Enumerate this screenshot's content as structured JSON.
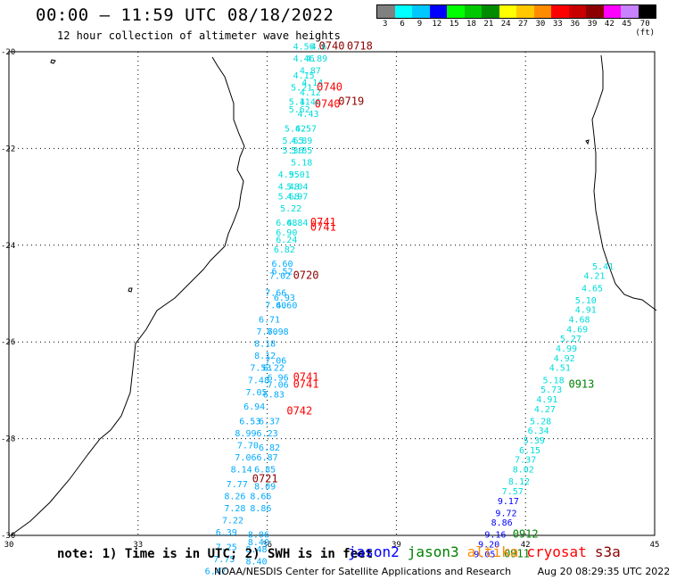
{
  "header": {
    "title": "00:00 – 11:59 UTC 08/18/2022",
    "subtitle": "12 hour collection of altimeter wave heights"
  },
  "legend": {
    "colors": [
      "#808080",
      "#00ffff",
      "#00c8ff",
      "#0000ff",
      "#00ff00",
      "#00c800",
      "#008c00",
      "#ffff00",
      "#ffc800",
      "#ff8c00",
      "#ff0000",
      "#c80000",
      "#8c0000",
      "#ff00ff",
      "#c882ff",
      "#000000"
    ],
    "labels": [
      "",
      "3",
      "6",
      "9",
      "12",
      "15",
      "18",
      "21",
      "24",
      "27",
      "30",
      "33",
      "36",
      "39",
      "42",
      "45",
      "70 (ft)"
    ]
  },
  "map": {
    "x_ticks": [
      "30",
      "33",
      "36",
      "39",
      "42",
      "45"
    ],
    "y_ticks": [
      "-20",
      "-22",
      "-24",
      "-26",
      "-28",
      "-30"
    ],
    "colors": {
      "cyan": "#00dcdc",
      "lightblue": "#00aaff",
      "blue": "#0000ff",
      "red": "#ff0000",
      "darkred": "#8b0000",
      "green": "#008000"
    },
    "wave_heights": [
      {
        "lon": 36.85,
        "lat": -19.95,
        "text": "4.56",
        "color": "cyan"
      },
      {
        "lon": 37.2,
        "lat": -19.95,
        "text": "4.6",
        "color": "cyan"
      },
      {
        "lon": 36.85,
        "lat": -20.2,
        "text": "4.46",
        "color": "cyan"
      },
      {
        "lon": 37.15,
        "lat": -20.2,
        "text": "4.89",
        "color": "cyan"
      },
      {
        "lon": 37.0,
        "lat": -20.45,
        "text": "4.87",
        "color": "cyan"
      },
      {
        "lon": 36.85,
        "lat": -20.55,
        "text": "4.15",
        "color": "cyan"
      },
      {
        "lon": 37.05,
        "lat": -20.7,
        "text": "4.14",
        "color": "cyan"
      },
      {
        "lon": 36.8,
        "lat": -20.8,
        "text": "5.21",
        "color": "cyan"
      },
      {
        "lon": 37.0,
        "lat": -20.9,
        "text": "4.12",
        "color": "cyan"
      },
      {
        "lon": 36.75,
        "lat": -21.1,
        "text": "5.11",
        "color": "cyan"
      },
      {
        "lon": 37.0,
        "lat": -21.1,
        "text": "4.46",
        "color": "cyan"
      },
      {
        "lon": 36.75,
        "lat": -21.25,
        "text": "5.62",
        "color": "cyan"
      },
      {
        "lon": 36.95,
        "lat": -21.35,
        "text": "4.43",
        "color": "cyan"
      },
      {
        "lon": 36.65,
        "lat": -21.65,
        "text": "5.62",
        "color": "cyan"
      },
      {
        "lon": 36.9,
        "lat": -21.65,
        "text": "4.57",
        "color": "cyan"
      },
      {
        "lon": 36.6,
        "lat": -21.9,
        "text": "5.65",
        "color": "cyan"
      },
      {
        "lon": 36.8,
        "lat": -21.9,
        "text": "4.89",
        "color": "cyan"
      },
      {
        "lon": 36.6,
        "lat": -22.1,
        "text": "5.36",
        "color": "cyan"
      },
      {
        "lon": 36.8,
        "lat": -22.1,
        "text": "5.85",
        "color": "cyan"
      },
      {
        "lon": 36.8,
        "lat": -22.35,
        "text": "5.18",
        "color": "cyan"
      },
      {
        "lon": 36.5,
        "lat": -22.6,
        "text": "4.95",
        "color": "cyan"
      },
      {
        "lon": 36.75,
        "lat": -22.6,
        "text": "5.01",
        "color": "cyan"
      },
      {
        "lon": 36.5,
        "lat": -22.85,
        "text": "4.48",
        "color": "cyan"
      },
      {
        "lon": 36.7,
        "lat": -22.85,
        "text": "5.04",
        "color": "cyan"
      },
      {
        "lon": 36.5,
        "lat": -23.05,
        "text": "5.68",
        "color": "cyan"
      },
      {
        "lon": 36.7,
        "lat": -23.05,
        "text": "4.97",
        "color": "cyan"
      },
      {
        "lon": 36.55,
        "lat": -23.3,
        "text": "5.22",
        "color": "cyan"
      },
      {
        "lon": 36.45,
        "lat": -23.6,
        "text": "6.48",
        "color": "cyan"
      },
      {
        "lon": 36.7,
        "lat": -23.6,
        "text": "6.84",
        "color": "cyan"
      },
      {
        "lon": 36.45,
        "lat": -23.8,
        "text": "6.90",
        "color": "cyan"
      },
      {
        "lon": 36.45,
        "lat": -23.95,
        "text": "6.24",
        "color": "cyan"
      },
      {
        "lon": 36.4,
        "lat": -24.15,
        "text": "6.82",
        "color": "cyan"
      },
      {
        "lon": 36.35,
        "lat": -24.45,
        "text": "6.60",
        "color": "lightblue"
      },
      {
        "lon": 36.35,
        "lat": -24.6,
        "text": "6.52",
        "color": "lightblue"
      },
      {
        "lon": 36.3,
        "lat": -24.7,
        "text": "7.02",
        "color": "lightblue"
      },
      {
        "lon": 36.2,
        "lat": -25.05,
        "text": "7.66",
        "color": "lightblue"
      },
      {
        "lon": 36.4,
        "lat": -25.15,
        "text": "6.93",
        "color": "lightblue"
      },
      {
        "lon": 36.2,
        "lat": -25.3,
        "text": "7.40",
        "color": "lightblue"
      },
      {
        "lon": 36.45,
        "lat": -25.3,
        "text": "6.60",
        "color": "lightblue"
      },
      {
        "lon": 36.05,
        "lat": -25.6,
        "text": "6.71",
        "color": "lightblue"
      },
      {
        "lon": 36.0,
        "lat": -25.85,
        "text": "7.70",
        "color": "lightblue"
      },
      {
        "lon": 36.25,
        "lat": -25.85,
        "text": "6.98",
        "color": "lightblue"
      },
      {
        "lon": 35.95,
        "lat": -26.1,
        "text": "8.18",
        "color": "lightblue"
      },
      {
        "lon": 35.95,
        "lat": -26.35,
        "text": "8.12",
        "color": "lightblue"
      },
      {
        "lon": 36.2,
        "lat": -26.45,
        "text": "7.06",
        "color": "lightblue"
      },
      {
        "lon": 35.85,
        "lat": -26.6,
        "text": "7.53",
        "color": "lightblue"
      },
      {
        "lon": 36.15,
        "lat": -26.6,
        "text": "6.22",
        "color": "lightblue"
      },
      {
        "lon": 36.25,
        "lat": -26.8,
        "text": "6.96",
        "color": "lightblue"
      },
      {
        "lon": 35.8,
        "lat": -26.85,
        "text": "7.48",
        "color": "lightblue"
      },
      {
        "lon": 36.25,
        "lat": -26.95,
        "text": "7.06",
        "color": "lightblue"
      },
      {
        "lon": 35.75,
        "lat": -27.1,
        "text": "7.05",
        "color": "lightblue"
      },
      {
        "lon": 36.15,
        "lat": -27.15,
        "text": "6.83",
        "color": "lightblue"
      },
      {
        "lon": 35.7,
        "lat": -27.4,
        "text": "6.94",
        "color": "lightblue"
      },
      {
        "lon": 35.6,
        "lat": -27.7,
        "text": "6.53",
        "color": "lightblue"
      },
      {
        "lon": 36.05,
        "lat": -27.7,
        "text": "6.37",
        "color": "lightblue"
      },
      {
        "lon": 35.5,
        "lat": -27.95,
        "text": "8.99",
        "color": "lightblue"
      },
      {
        "lon": 36.0,
        "lat": -27.95,
        "text": "6.23",
        "color": "lightblue"
      },
      {
        "lon": 35.55,
        "lat": -28.2,
        "text": "7.70",
        "color": "lightblue"
      },
      {
        "lon": 36.05,
        "lat": -28.25,
        "text": "6.82",
        "color": "lightblue"
      },
      {
        "lon": 35.5,
        "lat": -28.45,
        "text": "7.06",
        "color": "lightblue"
      },
      {
        "lon": 36.0,
        "lat": -28.45,
        "text": "6.87",
        "color": "lightblue"
      },
      {
        "lon": 35.4,
        "lat": -28.7,
        "text": "8.14",
        "color": "lightblue"
      },
      {
        "lon": 35.95,
        "lat": -28.7,
        "text": "6.85",
        "color": "lightblue"
      },
      {
        "lon": 35.3,
        "lat": -29.0,
        "text": "7.77",
        "color": "lightblue"
      },
      {
        "lon": 35.95,
        "lat": -29.05,
        "text": "8.09",
        "color": "lightblue"
      },
      {
        "lon": 35.25,
        "lat": -29.25,
        "text": "8.26",
        "color": "lightblue"
      },
      {
        "lon": 35.85,
        "lat": -29.25,
        "text": "8.66",
        "color": "lightblue"
      },
      {
        "lon": 35.25,
        "lat": -29.5,
        "text": "7.28",
        "color": "lightblue"
      },
      {
        "lon": 35.85,
        "lat": -29.5,
        "text": "8.86",
        "color": "lightblue"
      },
      {
        "lon": 35.2,
        "lat": -29.75,
        "text": "7.22",
        "color": "lightblue"
      },
      {
        "lon": 35.05,
        "lat": -30.0,
        "text": "6.39",
        "color": "lightblue"
      },
      {
        "lon": 35.8,
        "lat": -30.05,
        "text": "8.06",
        "color": "lightblue"
      },
      {
        "lon": 35.8,
        "lat": -30.2,
        "text": "8.40",
        "color": "lightblue"
      },
      {
        "lon": 35.05,
        "lat": -30.3,
        "text": "7.25",
        "color": "lightblue"
      },
      {
        "lon": 35.75,
        "lat": -30.35,
        "text": "8.48",
        "color": "lightblue"
      },
      {
        "lon": 35.0,
        "lat": -30.55,
        "text": "7.75",
        "color": "lightblue"
      },
      {
        "lon": 35.75,
        "lat": -30.6,
        "text": "8.40",
        "color": "lightblue"
      },
      {
        "lon": 34.8,
        "lat": -30.8,
        "text": "6.47",
        "color": "lightblue"
      },
      {
        "lon": 43.8,
        "lat": -24.5,
        "text": "5.41",
        "color": "cyan"
      },
      {
        "lon": 43.6,
        "lat": -24.7,
        "text": "4.21",
        "color": "cyan"
      },
      {
        "lon": 43.55,
        "lat": -24.95,
        "text": "4.65",
        "color": "cyan"
      },
      {
        "lon": 43.4,
        "lat": -25.2,
        "text": "5.10",
        "color": "cyan"
      },
      {
        "lon": 43.4,
        "lat": -25.4,
        "text": "4.91",
        "color": "cyan"
      },
      {
        "lon": 43.25,
        "lat": -25.6,
        "text": "4.68",
        "color": "cyan"
      },
      {
        "lon": 43.2,
        "lat": -25.8,
        "text": "4.69",
        "color": "cyan"
      },
      {
        "lon": 43.05,
        "lat": -26.0,
        "text": "5.27",
        "color": "cyan"
      },
      {
        "lon": 42.95,
        "lat": -26.2,
        "text": "4.99",
        "color": "cyan"
      },
      {
        "lon": 42.9,
        "lat": -26.4,
        "text": "4.92",
        "color": "cyan"
      },
      {
        "lon": 42.8,
        "lat": -26.6,
        "text": "4.51",
        "color": "cyan"
      },
      {
        "lon": 42.65,
        "lat": -26.85,
        "text": "5.18",
        "color": "cyan"
      },
      {
        "lon": 42.6,
        "lat": -27.05,
        "text": "5.73",
        "color": "cyan"
      },
      {
        "lon": 42.5,
        "lat": -27.25,
        "text": "4.91",
        "color": "cyan"
      },
      {
        "lon": 42.45,
        "lat": -27.45,
        "text": "4.27",
        "color": "cyan"
      },
      {
        "lon": 42.35,
        "lat": -27.7,
        "text": "5.28",
        "color": "cyan"
      },
      {
        "lon": 42.3,
        "lat": -27.9,
        "text": "6.34",
        "color": "cyan"
      },
      {
        "lon": 42.2,
        "lat": -28.1,
        "text": "5.39",
        "color": "cyan"
      },
      {
        "lon": 42.1,
        "lat": -28.3,
        "text": "6.15",
        "color": "cyan"
      },
      {
        "lon": 42.0,
        "lat": -28.5,
        "text": "7.37",
        "color": "cyan"
      },
      {
        "lon": 41.95,
        "lat": -28.7,
        "text": "8.02",
        "color": "cyan"
      },
      {
        "lon": 41.85,
        "lat": -28.95,
        "text": "8.12",
        "color": "cyan"
      },
      {
        "lon": 41.7,
        "lat": -29.15,
        "text": "7.57",
        "color": "cyan"
      },
      {
        "lon": 41.6,
        "lat": -29.35,
        "text": "9.17",
        "color": "blue"
      },
      {
        "lon": 41.55,
        "lat": -29.6,
        "text": "9.72",
        "color": "blue"
      },
      {
        "lon": 41.45,
        "lat": -29.8,
        "text": "8.86",
        "color": "blue"
      },
      {
        "lon": 41.3,
        "lat": -30.05,
        "text": "9.16",
        "color": "blue"
      },
      {
        "lon": 41.15,
        "lat": -30.25,
        "text": "9.20",
        "color": "blue"
      },
      {
        "lon": 41.05,
        "lat": -30.45,
        "text": "9.05",
        "color": "blue"
      }
    ],
    "pass_labels": [
      {
        "lon": 37.5,
        "lat": -19.95,
        "text": "0740",
        "color": "darkred"
      },
      {
        "lon": 38.15,
        "lat": -19.95,
        "text": "0718",
        "color": "darkred"
      },
      {
        "lon": 37.45,
        "lat": -20.8,
        "text": "0740",
        "color": "red"
      },
      {
        "lon": 37.95,
        "lat": -21.1,
        "text": "0719",
        "color": "darkred"
      },
      {
        "lon": 37.4,
        "lat": -21.15,
        "text": "0740",
        "color": "red"
      },
      {
        "lon": 37.3,
        "lat": -23.6,
        "text": "0741",
        "color": "red"
      },
      {
        "lon": 37.3,
        "lat": -23.7,
        "text": "0741",
        "color": "red"
      },
      {
        "lon": 36.9,
        "lat": -24.7,
        "text": "0720",
        "color": "darkred"
      },
      {
        "lon": 36.9,
        "lat": -26.8,
        "text": "0741",
        "color": "red"
      },
      {
        "lon": 36.9,
        "lat": -26.95,
        "text": "0741",
        "color": "red"
      },
      {
        "lon": 36.75,
        "lat": -27.5,
        "text": "0742",
        "color": "red"
      },
      {
        "lon": 35.95,
        "lat": -28.9,
        "text": "0721",
        "color": "darkred"
      },
      {
        "lon": 43.3,
        "lat": -26.95,
        "text": "0913",
        "color": "green"
      },
      {
        "lon": 42.0,
        "lat": -30.05,
        "text": "0912",
        "color": "green"
      },
      {
        "lon": 41.8,
        "lat": -30.45,
        "text": "0911",
        "color": "green"
      }
    ]
  },
  "note": "note: 1) Time is in UTC; 2) SWH is in feet",
  "satellites": [
    {
      "name": "jason2",
      "color": "#0000ff"
    },
    {
      "name": "jason3",
      "color": "#008000"
    },
    {
      "name": "altika",
      "color": "#ff8c00"
    },
    {
      "name": "cryosat",
      "color": "#ff0000"
    },
    {
      "name": "s3a",
      "color": "#8b0000"
    }
  ],
  "footer": {
    "org": "NOAA/NESDIS Center for Satellite Applications and Research",
    "timestamp": "Aug 20 08:29:35 UTC 2022"
  }
}
